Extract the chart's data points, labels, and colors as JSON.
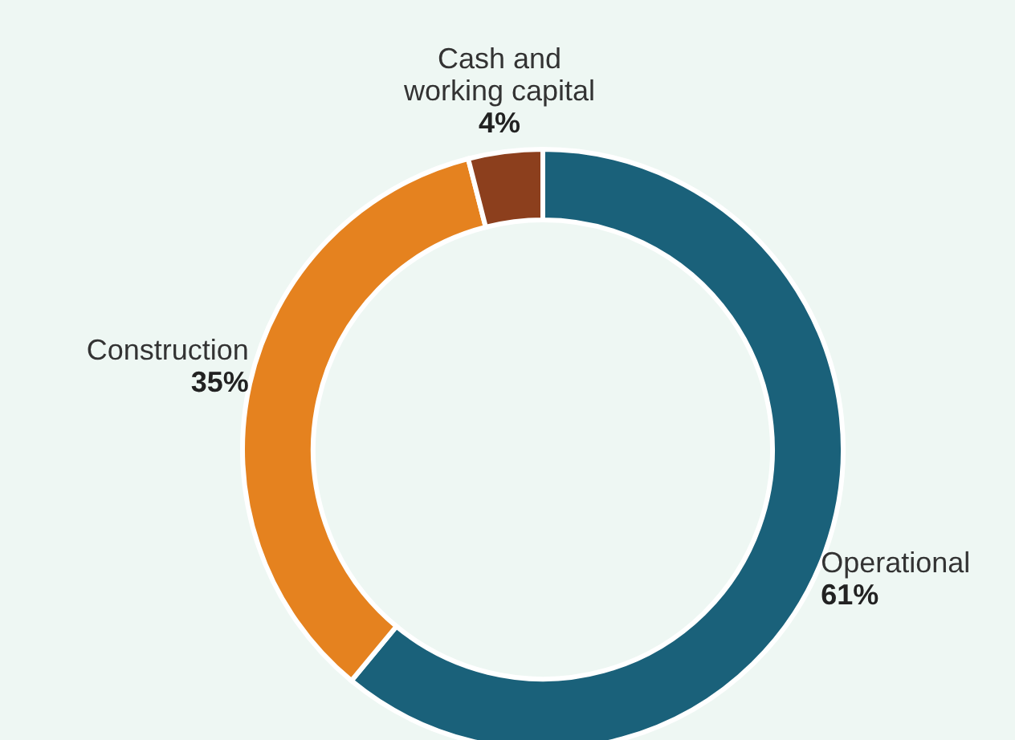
{
  "chart_data": {
    "type": "donut",
    "categories": [
      "Operational",
      "Construction",
      "Cash and\nworking capital"
    ],
    "values": [
      61,
      35,
      4
    ],
    "colors": [
      "#1a617a",
      "#e5821f",
      "#8c3f1d"
    ],
    "value_labels": [
      "61%",
      "35%",
      "4%"
    ]
  }
}
